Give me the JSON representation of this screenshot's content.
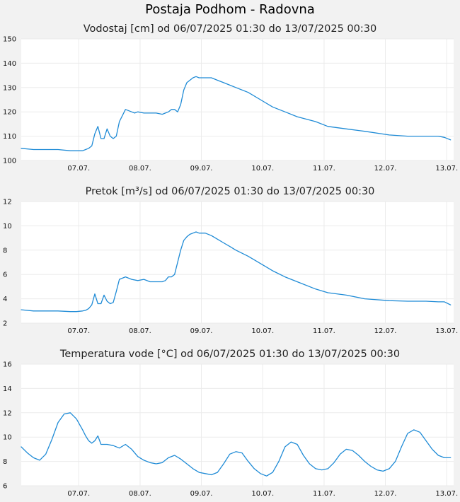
{
  "page_title": "Postaja Podhom - Radovna",
  "colors": {
    "line": "#1f8bd6",
    "plot_bg": "#ffffff",
    "page_bg": "#f2f2f2",
    "grid": "#ebebeb"
  },
  "chart_data": [
    {
      "type": "line",
      "title": "Vodostaj [cm] od 06/07/2025 01:30 do 13/07/2025 00:30",
      "xlabel": "",
      "ylabel": "",
      "ylim": [
        100,
        150
      ],
      "yticks": [
        100,
        110,
        120,
        130,
        140,
        150
      ],
      "xlim": [
        0,
        7.05
      ],
      "xticks": [
        {
          "label": "07.07.",
          "x": 0.9375
        },
        {
          "label": "08.07.",
          "x": 1.9375
        },
        {
          "label": "09.07.",
          "x": 2.9375
        },
        {
          "label": "10.07.",
          "x": 3.9375
        },
        {
          "label": "11.07.",
          "x": 4.9375
        },
        {
          "label": "12.07.",
          "x": 5.9375
        },
        {
          "label": "13.07.",
          "x": 6.9375
        }
      ],
      "grid": true,
      "series": [
        {
          "x": [
            0,
            0.2,
            0.4,
            0.6,
            0.8,
            0.86,
            0.92,
            0.98,
            1.0,
            1.05,
            1.1,
            1.15,
            1.2,
            1.25,
            1.3,
            1.35,
            1.4,
            1.45,
            1.5,
            1.55,
            1.6,
            1.7,
            1.8,
            1.85,
            1.9,
            2.0,
            2.1,
            2.2,
            2.3,
            2.35,
            2.4,
            2.45,
            2.5,
            2.55,
            2.6,
            2.65,
            2.7,
            2.75,
            2.8,
            2.85,
            2.9,
            3.0,
            3.1,
            3.2,
            3.3,
            3.4,
            3.5,
            3.7,
            3.9,
            4.1,
            4.3,
            4.5,
            4.8,
            5.0,
            5.3,
            5.6,
            6.0,
            6.3,
            6.6,
            6.8,
            6.9,
            7.0
          ],
          "values": [
            105,
            104.5,
            104.5,
            104.5,
            104,
            104,
            104,
            104,
            104,
            104.5,
            105,
            106,
            111,
            114,
            109,
            109,
            113,
            110,
            109,
            110,
            116,
            121,
            120,
            119.5,
            120,
            119.5,
            119.5,
            119.5,
            119,
            119.5,
            120,
            121,
            121,
            120,
            123,
            129,
            132,
            133,
            134,
            134.5,
            134,
            134,
            134,
            133,
            132,
            131,
            130,
            128,
            125,
            122,
            120,
            118,
            116,
            114,
            113,
            112,
            110.5,
            110,
            110,
            110,
            109.5,
            108.5
          ]
        }
      ]
    },
    {
      "type": "line",
      "title": "Pretok [m³/s] od 06/07/2025 01:30 do 13/07/2025 00:30",
      "xlabel": "",
      "ylabel": "",
      "ylim": [
        2,
        12
      ],
      "yticks": [
        2,
        4,
        6,
        8,
        10,
        12
      ],
      "xlim": [
        0,
        7.05
      ],
      "xticks": [
        {
          "label": "07.07.",
          "x": 0.9375
        },
        {
          "label": "08.07.",
          "x": 1.9375
        },
        {
          "label": "09.07.",
          "x": 2.9375
        },
        {
          "label": "10.07.",
          "x": 3.9375
        },
        {
          "label": "11.07.",
          "x": 4.9375
        },
        {
          "label": "12.07.",
          "x": 5.9375
        },
        {
          "label": "13.07.",
          "x": 6.9375
        }
      ],
      "grid": true,
      "series": [
        {
          "x": [
            0,
            0.2,
            0.4,
            0.6,
            0.8,
            0.9,
            1.0,
            1.05,
            1.1,
            1.15,
            1.2,
            1.25,
            1.3,
            1.35,
            1.4,
            1.45,
            1.5,
            1.55,
            1.6,
            1.7,
            1.8,
            1.9,
            2.0,
            2.1,
            2.2,
            2.3,
            2.35,
            2.4,
            2.45,
            2.5,
            2.55,
            2.6,
            2.65,
            2.7,
            2.75,
            2.8,
            2.85,
            2.9,
            3.0,
            3.1,
            3.2,
            3.3,
            3.4,
            3.5,
            3.7,
            3.9,
            4.1,
            4.3,
            4.5,
            4.8,
            5.0,
            5.3,
            5.6,
            6.0,
            6.3,
            6.6,
            6.8,
            6.9,
            7.0
          ],
          "values": [
            3.1,
            3.0,
            3.0,
            3.0,
            2.95,
            2.95,
            3.0,
            3.05,
            3.2,
            3.5,
            4.4,
            3.6,
            3.6,
            4.3,
            3.8,
            3.6,
            3.7,
            4.6,
            5.6,
            5.8,
            5.6,
            5.5,
            5.6,
            5.4,
            5.4,
            5.4,
            5.5,
            5.8,
            5.8,
            6.0,
            7.0,
            8.0,
            8.8,
            9.1,
            9.3,
            9.4,
            9.5,
            9.4,
            9.4,
            9.2,
            8.9,
            8.6,
            8.3,
            8.0,
            7.5,
            6.9,
            6.3,
            5.8,
            5.4,
            4.8,
            4.5,
            4.3,
            4.0,
            3.85,
            3.8,
            3.8,
            3.75,
            3.75,
            3.5
          ]
        }
      ]
    },
    {
      "type": "line",
      "title": "Temperatura vode [°C] od 06/07/2025 01:30 do 13/07/2025 00:30",
      "xlabel": "",
      "ylabel": "",
      "ylim": [
        6,
        16
      ],
      "yticks": [
        6,
        8,
        10,
        12,
        14,
        16
      ],
      "xlim": [
        0,
        7.05
      ],
      "xticks": [
        {
          "label": "07.07.",
          "x": 0.9375
        },
        {
          "label": "08.07.",
          "x": 1.9375
        },
        {
          "label": "09.07.",
          "x": 2.9375
        },
        {
          "label": "10.07.",
          "x": 3.9375
        },
        {
          "label": "11.07.",
          "x": 4.9375
        },
        {
          "label": "12.07.",
          "x": 5.9375
        },
        {
          "label": "13.07.",
          "x": 6.9375
        }
      ],
      "grid": true,
      "series": [
        {
          "x": [
            0,
            0.1,
            0.2,
            0.3,
            0.4,
            0.5,
            0.6,
            0.7,
            0.8,
            0.9,
            1.0,
            1.05,
            1.1,
            1.15,
            1.2,
            1.25,
            1.3,
            1.4,
            1.5,
            1.6,
            1.7,
            1.8,
            1.9,
            2.0,
            2.1,
            2.2,
            2.3,
            2.4,
            2.5,
            2.6,
            2.7,
            2.8,
            2.9,
            3.0,
            3.1,
            3.2,
            3.3,
            3.4,
            3.5,
            3.6,
            3.7,
            3.8,
            3.9,
            4.0,
            4.1,
            4.2,
            4.3,
            4.4,
            4.5,
            4.6,
            4.7,
            4.8,
            4.9,
            5.0,
            5.1,
            5.2,
            5.3,
            5.4,
            5.5,
            5.6,
            5.7,
            5.8,
            5.9,
            6.0,
            6.1,
            6.2,
            6.3,
            6.4,
            6.5,
            6.6,
            6.7,
            6.8,
            6.9,
            7.0
          ],
          "values": [
            9.2,
            8.7,
            8.3,
            8.1,
            8.6,
            9.8,
            11.2,
            11.9,
            12.0,
            11.5,
            10.6,
            10.1,
            9.7,
            9.5,
            9.7,
            10.1,
            9.4,
            9.4,
            9.3,
            9.1,
            9.4,
            9.0,
            8.4,
            8.1,
            7.9,
            7.8,
            7.9,
            8.3,
            8.5,
            8.2,
            7.8,
            7.4,
            7.1,
            7.0,
            6.9,
            7.1,
            7.8,
            8.6,
            8.8,
            8.7,
            8.0,
            7.4,
            7.0,
            6.8,
            7.1,
            8.0,
            9.2,
            9.6,
            9.4,
            8.5,
            7.8,
            7.4,
            7.3,
            7.4,
            7.9,
            8.6,
            9.0,
            8.9,
            8.5,
            8.0,
            7.6,
            7.3,
            7.2,
            7.4,
            8.0,
            9.2,
            10.3,
            10.6,
            10.4,
            9.7,
            9.0,
            8.5,
            8.3,
            8.3
          ]
        }
      ]
    }
  ]
}
